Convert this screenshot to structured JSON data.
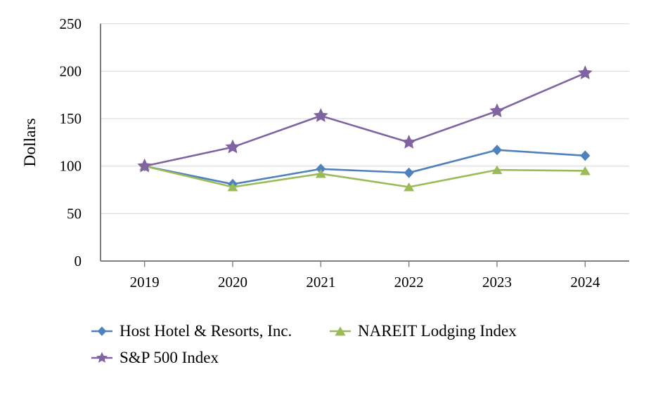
{
  "chart_data": {
    "type": "line",
    "title": "",
    "xlabel": "",
    "ylabel": "Dollars",
    "categories": [
      "2019",
      "2020",
      "2021",
      "2022",
      "2023",
      "2024"
    ],
    "y_ticks": [
      0,
      50,
      100,
      150,
      200,
      250
    ],
    "ylim": [
      0,
      250
    ],
    "grid": "horizontal",
    "legend_position": "bottom-left, two rows",
    "series": [
      {
        "name": "Host Hotel & Resorts, Inc.",
        "marker": "diamond",
        "color": "#4F81BD",
        "values": [
          100,
          81,
          97,
          93,
          117,
          111
        ]
      },
      {
        "name": "NAREIT Lodging Index",
        "marker": "triangle",
        "color": "#9BBB59",
        "values": [
          100,
          78,
          92,
          78,
          96,
          95
        ]
      },
      {
        "name": "S&P 500 Index",
        "marker": "star",
        "color": "#8064A2",
        "values": [
          100,
          120,
          153,
          125,
          158,
          198
        ]
      }
    ],
    "colors": {
      "y_axis_line": "#6f6f6f",
      "x_axis_line": "#7f7f7f",
      "gridline": "#dcdcdc",
      "text": "#000000",
      "background": "#ffffff"
    }
  }
}
